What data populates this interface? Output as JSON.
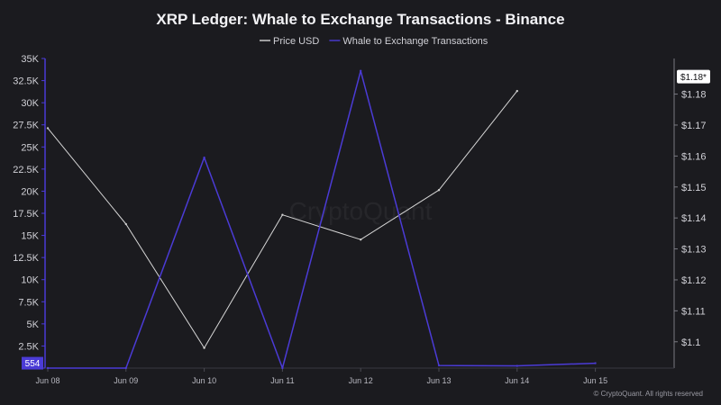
{
  "chart_data": {
    "type": "line",
    "title": "XRP Ledger: Whale to Exchange Transactions - Binance",
    "categories": [
      "Jun 08",
      "Jun 09",
      "Jun 10",
      "Jun 11",
      "Jun 12",
      "Jun 13",
      "Jun 14",
      "Jun 15"
    ],
    "series": [
      {
        "name": "Price USD",
        "axis": "right",
        "color": "#d6d6d6",
        "values": [
          1.169,
          1.138,
          1.098,
          1.141,
          1.133,
          1.149,
          1.181,
          null
        ]
      },
      {
        "name": "Whale to Exchange Transactions",
        "axis": "left",
        "color": "#4b3bd6",
        "values": [
          0,
          0,
          23800,
          0,
          33600,
          300,
          250,
          554
        ]
      }
    ],
    "y_left": {
      "range": [
        0,
        35000
      ],
      "ticks": [
        0,
        2500,
        5000,
        7500,
        10000,
        12500,
        15000,
        17500,
        20000,
        22500,
        25000,
        27500,
        30000,
        32500,
        35000
      ],
      "tick_labels": [
        "",
        "2.5K",
        "5K",
        "7.5K",
        "10K",
        "12.5K",
        "15K",
        "17.5K",
        "20K",
        "22.5K",
        "25K",
        "27.5K",
        "30K",
        "32.5K",
        "35K"
      ],
      "badge": "554",
      "badge_value": 554,
      "badge_color": "#4b3bd6"
    },
    "y_right": {
      "range": [
        1.0915,
        1.1915
      ],
      "ticks": [
        1.1,
        1.11,
        1.12,
        1.13,
        1.14,
        1.15,
        1.16,
        1.17,
        1.18
      ],
      "tick_labels": [
        "$1.1",
        "$1.11",
        "$1.12",
        "$1.13",
        "$1.14",
        "$1.15",
        "$1.16",
        "$1.17",
        "$1.18"
      ],
      "badge": "$1.18*",
      "badge_value": 1.1855,
      "badge_color": "#ffffff"
    },
    "grid": false,
    "legend": "top-center"
  },
  "watermark": "CryptoQuant",
  "footer": "© CryptoQuant. All rights reserved"
}
